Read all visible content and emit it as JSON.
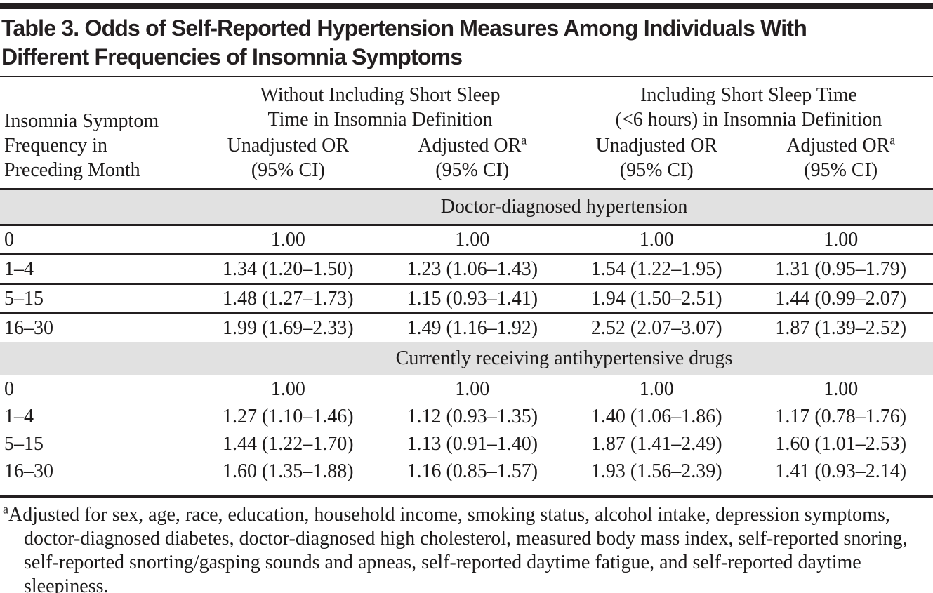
{
  "title": "Table 3. Odds of Self-Reported Hypertension Measures Among Individuals With\nDifferent Frequencies of Insomnia Symptoms",
  "colors": {
    "band_background": "#e1e1e1",
    "rule": "#231f20",
    "text": "#1c1a1a"
  },
  "header": {
    "stub": "Insomnia Symptom\nFrequency in\nPreceding Month",
    "groups": [
      {
        "title": "Without Including Short Sleep\nTime in Insomnia Definition"
      },
      {
        "title": "Including Short Sleep Time\n(<6 hours) in Insomnia Definition"
      }
    ],
    "unadjusted": "Unadjusted OR",
    "adjusted": "Adjusted OR",
    "adjusted_sup": "a",
    "ci": "(95% CI)"
  },
  "table": {
    "sections": [
      {
        "label": "Doctor-diagnosed hypertension",
        "rows": [
          {
            "freq": "0",
            "values": [
              "1.00",
              "1.00",
              "1.00",
              "1.00"
            ]
          },
          {
            "freq": "1–4",
            "values": [
              "1.34 (1.20–1.50)",
              "1.23 (1.06–1.43)",
              "1.54 (1.22–1.95)",
              "1.31 (0.95–1.79)"
            ]
          },
          {
            "freq": "5–15",
            "values": [
              "1.48 (1.27–1.73)",
              "1.15 (0.93–1.41)",
              "1.94 (1.50–2.51)",
              "1.44 (0.99–2.07)"
            ]
          },
          {
            "freq": "16–30",
            "values": [
              "1.99 (1.69–2.33)",
              "1.49 (1.16–1.92)",
              "2.52 (2.07–3.07)",
              "1.87 (1.39–2.52)"
            ]
          }
        ]
      },
      {
        "label": "Currently receiving antihypertensive drugs",
        "rows": [
          {
            "freq": "0",
            "values": [
              "1.00",
              "1.00",
              "1.00",
              "1.00"
            ]
          },
          {
            "freq": "1–4",
            "values": [
              "1.27 (1.10–1.46)",
              "1.12 (0.93–1.35)",
              "1.40 (1.06–1.86)",
              "1.17 (0.78–1.76)"
            ]
          },
          {
            "freq": "5–15",
            "values": [
              "1.44 (1.22–1.70)",
              "1.13 (0.91–1.40)",
              "1.87 (1.41–2.49)",
              "1.60 (1.01–2.53)"
            ]
          },
          {
            "freq": "16–30",
            "values": [
              "1.60 (1.35–1.88)",
              "1.16 (0.85–1.57)",
              "1.93 (1.56–2.39)",
              "1.41 (0.93–2.14)"
            ]
          }
        ]
      }
    ]
  },
  "footnote": {
    "sup": "a",
    "text": "Adjusted for sex, age, race, education, household income, smoking status, alcohol intake, depression symptoms, doctor-diagnosed diabetes, doctor-diagnosed high cholesterol, measured body mass index, self-reported snoring, self-reported snorting/gasping sounds and apneas, self-reported daytime fatigue, and self-reported daytime sleepiness."
  }
}
